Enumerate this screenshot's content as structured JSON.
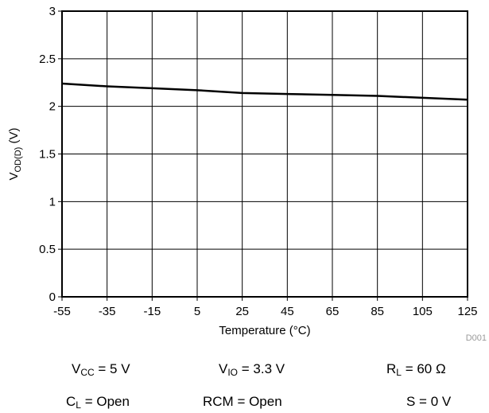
{
  "chart_data": {
    "type": "line",
    "title": "",
    "xlabel": "Temperature (°C)",
    "ylabel": {
      "main": "V",
      "sub": "OD(D)",
      "tail": " (V)"
    },
    "xlim": [
      -55,
      125
    ],
    "ylim": [
      0,
      3
    ],
    "xticks": [
      -55,
      -35,
      -15,
      5,
      25,
      45,
      65,
      85,
      105,
      125
    ],
    "yticks": [
      0,
      0.5,
      1,
      1.5,
      2,
      2.5,
      3
    ],
    "grid": true,
    "legend": "none",
    "series": [
      {
        "color": "#000000",
        "x": [
          -55,
          -35,
          -15,
          5,
          25,
          45,
          65,
          85,
          105,
          125
        ],
        "y": [
          2.24,
          2.21,
          2.19,
          2.17,
          2.14,
          2.13,
          2.12,
          2.11,
          2.09,
          2.07
        ]
      }
    ],
    "figure_code": "D001"
  },
  "conditions": [
    [
      {
        "main": "V",
        "sub": "CC",
        "rest": " = 5 V"
      },
      {
        "main": "V",
        "sub": "IO",
        "rest": " = 3.3 V"
      },
      {
        "main": "R",
        "sub": "L",
        "rest": " = 60 Ω"
      }
    ],
    [
      {
        "main": "C",
        "sub": "L",
        "rest": " = Open"
      },
      {
        "main": "RCM = Open",
        "sub": "",
        "rest": ""
      },
      {
        "main": "S = 0 V",
        "sub": "",
        "rest": ""
      }
    ]
  ]
}
